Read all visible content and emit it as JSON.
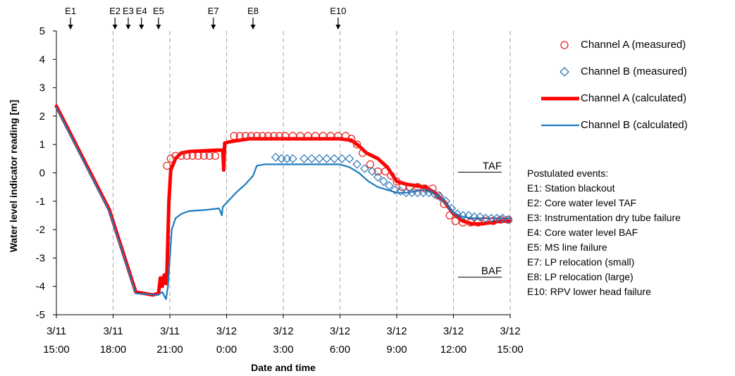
{
  "chart_data": {
    "type": "line",
    "xlabel": "Date and time",
    "ylabel": "Water level indicator reading [m]",
    "x_unit": "hour from 3/11 15:00",
    "xlim": [
      0,
      24
    ],
    "ylim": [
      -5,
      5
    ],
    "y_ticks": [
      5,
      4,
      3,
      2,
      1,
      0,
      -1,
      -2,
      -3,
      -4,
      -5
    ],
    "y_tick_labels": [
      "5",
      "4",
      "3",
      "2",
      "1",
      "0",
      "-1",
      "-2",
      "-3",
      "-4",
      "-5"
    ],
    "x_ticks": [
      {
        "x": 0,
        "date": "3/11",
        "time": "15:00"
      },
      {
        "x": 3,
        "date": "3/11",
        "time": "18:00"
      },
      {
        "x": 6,
        "date": "3/11",
        "time": "21:00"
      },
      {
        "x": 9,
        "date": "3/12",
        "time": "0:00"
      },
      {
        "x": 12,
        "date": "3/12",
        "time": "3:00"
      },
      {
        "x": 15,
        "date": "3/12",
        "time": "6:00"
      },
      {
        "x": 18,
        "date": "3/12",
        "time": "9:00"
      },
      {
        "x": 21,
        "date": "3/12",
        "time": "12:00"
      },
      {
        "x": 24,
        "date": "3/12",
        "time": "15:00"
      }
    ],
    "event_markers": [
      {
        "label": "E1",
        "x": 0.75
      },
      {
        "label": "E2",
        "x": 3.1
      },
      {
        "label": "E3",
        "x": 3.8
      },
      {
        "label": "E4",
        "x": 4.5
      },
      {
        "label": "E5",
        "x": 5.4
      },
      {
        "label": "E7",
        "x": 8.3
      },
      {
        "label": "E8",
        "x": 10.4
      },
      {
        "label": "E10",
        "x": 14.9
      }
    ],
    "reference_lines": [
      {
        "label": "TAF",
        "y": 0
      },
      {
        "label": "BAF",
        "y": -3.7
      }
    ],
    "grid": "vertical dashed at x ticks",
    "legend_position": "right",
    "series": [
      {
        "name": "Channel A (measured)",
        "style": "marker-circle",
        "color": "#e8201c",
        "points": [
          [
            5.85,
            0.25
          ],
          [
            6.05,
            0.5
          ],
          [
            6.3,
            0.6
          ],
          [
            6.6,
            0.6
          ],
          [
            6.9,
            0.6
          ],
          [
            7.2,
            0.6
          ],
          [
            7.5,
            0.6
          ],
          [
            7.8,
            0.6
          ],
          [
            8.1,
            0.6
          ],
          [
            8.4,
            0.6
          ],
          [
            9.4,
            1.3
          ],
          [
            9.7,
            1.3
          ],
          [
            10.0,
            1.3
          ],
          [
            10.3,
            1.3
          ],
          [
            10.6,
            1.3
          ],
          [
            10.9,
            1.3
          ],
          [
            11.2,
            1.3
          ],
          [
            11.5,
            1.3
          ],
          [
            11.8,
            1.3
          ],
          [
            12.1,
            1.3
          ],
          [
            12.5,
            1.3
          ],
          [
            12.9,
            1.3
          ],
          [
            13.3,
            1.3
          ],
          [
            13.7,
            1.3
          ],
          [
            14.1,
            1.3
          ],
          [
            14.5,
            1.3
          ],
          [
            14.9,
            1.3
          ],
          [
            15.3,
            1.3
          ],
          [
            15.6,
            1.2
          ],
          [
            15.9,
            1.0
          ],
          [
            16.2,
            0.7
          ],
          [
            16.6,
            0.3
          ],
          [
            17.0,
            0.05
          ],
          [
            17.4,
            0.05
          ],
          [
            17.7,
            -0.1
          ],
          [
            18.0,
            -0.3
          ],
          [
            18.3,
            -0.5
          ],
          [
            18.7,
            -0.5
          ],
          [
            19.1,
            -0.5
          ],
          [
            19.5,
            -0.55
          ],
          [
            19.9,
            -0.55
          ],
          [
            20.2,
            -0.8
          ],
          [
            20.5,
            -1.1
          ],
          [
            20.8,
            -1.5
          ],
          [
            21.1,
            -1.7
          ],
          [
            21.5,
            -1.75
          ],
          [
            21.9,
            -1.75
          ],
          [
            22.3,
            -1.75
          ],
          [
            22.7,
            -1.7
          ],
          [
            23.1,
            -1.7
          ],
          [
            23.5,
            -1.65
          ],
          [
            23.9,
            -1.65
          ]
        ]
      },
      {
        "name": "Channel B (measured)",
        "style": "marker-diamond",
        "color": "#2e75b6",
        "points": [
          [
            11.6,
            0.55
          ],
          [
            11.9,
            0.5
          ],
          [
            12.2,
            0.5
          ],
          [
            12.5,
            0.5
          ],
          [
            13.1,
            0.5
          ],
          [
            13.5,
            0.5
          ],
          [
            13.9,
            0.5
          ],
          [
            14.3,
            0.5
          ],
          [
            14.7,
            0.5
          ],
          [
            15.1,
            0.5
          ],
          [
            15.5,
            0.5
          ],
          [
            15.9,
            0.3
          ],
          [
            16.3,
            0.15
          ],
          [
            16.7,
            0.05
          ],
          [
            17.0,
            -0.15
          ],
          [
            17.3,
            -0.3
          ],
          [
            17.6,
            -0.45
          ],
          [
            17.9,
            -0.6
          ],
          [
            18.2,
            -0.65
          ],
          [
            18.5,
            -0.7
          ],
          [
            18.8,
            -0.7
          ],
          [
            19.1,
            -0.7
          ],
          [
            19.4,
            -0.7
          ],
          [
            19.7,
            -0.7
          ],
          [
            20.0,
            -0.75
          ],
          [
            20.3,
            -0.85
          ],
          [
            20.6,
            -1.0
          ],
          [
            20.9,
            -1.25
          ],
          [
            21.2,
            -1.45
          ],
          [
            21.5,
            -1.5
          ],
          [
            21.8,
            -1.5
          ],
          [
            22.1,
            -1.55
          ],
          [
            22.4,
            -1.55
          ],
          [
            22.7,
            -1.6
          ],
          [
            23.0,
            -1.6
          ],
          [
            23.3,
            -1.6
          ],
          [
            23.6,
            -1.6
          ],
          [
            23.9,
            -1.65
          ]
        ]
      },
      {
        "name": "Channel A (calculated)",
        "style": "line-thick",
        "color": "#ff0000",
        "points": [
          [
            0,
            2.35
          ],
          [
            2.8,
            -1.3
          ],
          [
            4.2,
            -4.2
          ],
          [
            5.1,
            -4.3
          ],
          [
            5.4,
            -4.25
          ],
          [
            5.5,
            -3.7
          ],
          [
            5.6,
            -4.0
          ],
          [
            5.7,
            -3.6
          ],
          [
            5.8,
            -3.9
          ],
          [
            5.85,
            -3.4
          ],
          [
            5.95,
            -1.0
          ],
          [
            6.05,
            0.1
          ],
          [
            6.3,
            0.5
          ],
          [
            6.6,
            0.7
          ],
          [
            7.0,
            0.75
          ],
          [
            8.5,
            0.8
          ],
          [
            8.8,
            0.8
          ],
          [
            8.85,
            0.1
          ],
          [
            8.9,
            1.05
          ],
          [
            9.2,
            1.1
          ],
          [
            10.2,
            1.2
          ],
          [
            11.0,
            1.2
          ],
          [
            12.0,
            1.2
          ],
          [
            13.0,
            1.2
          ],
          [
            14.0,
            1.2
          ],
          [
            15.0,
            1.2
          ],
          [
            15.6,
            1.15
          ],
          [
            16.0,
            0.95
          ],
          [
            16.4,
            0.7
          ],
          [
            17.0,
            0.5
          ],
          [
            17.5,
            0.2
          ],
          [
            18.0,
            -0.3
          ],
          [
            18.5,
            -0.4
          ],
          [
            19.5,
            -0.5
          ],
          [
            20.0,
            -0.7
          ],
          [
            20.5,
            -1.0
          ],
          [
            21.0,
            -1.45
          ],
          [
            21.5,
            -1.7
          ],
          [
            22.0,
            -1.8
          ],
          [
            22.5,
            -1.8
          ],
          [
            23.0,
            -1.75
          ],
          [
            23.5,
            -1.7
          ],
          [
            24.0,
            -1.7
          ]
        ]
      },
      {
        "name": "Channel B (calculated)",
        "style": "line-thin",
        "color": "#1c7bbf",
        "points": [
          [
            0,
            2.3
          ],
          [
            2.8,
            -1.35
          ],
          [
            4.2,
            -4.25
          ],
          [
            5.4,
            -4.3
          ],
          [
            5.6,
            -4.2
          ],
          [
            5.8,
            -4.45
          ],
          [
            5.9,
            -4.0
          ],
          [
            6.0,
            -3.0
          ],
          [
            6.1,
            -2.0
          ],
          [
            6.3,
            -1.6
          ],
          [
            6.6,
            -1.45
          ],
          [
            7.0,
            -1.35
          ],
          [
            8.0,
            -1.3
          ],
          [
            8.6,
            -1.25
          ],
          [
            8.75,
            -1.5
          ],
          [
            8.8,
            -1.2
          ],
          [
            9.5,
            -0.7
          ],
          [
            10.0,
            -0.4
          ],
          [
            10.4,
            -0.1
          ],
          [
            10.6,
            0.25
          ],
          [
            11.0,
            0.3
          ],
          [
            12.0,
            0.3
          ],
          [
            13.0,
            0.3
          ],
          [
            14.0,
            0.3
          ],
          [
            15.0,
            0.3
          ],
          [
            15.5,
            0.2
          ],
          [
            16.0,
            0.0
          ],
          [
            16.5,
            -0.3
          ],
          [
            17.0,
            -0.5
          ],
          [
            17.5,
            -0.6
          ],
          [
            18.0,
            -0.7
          ],
          [
            18.5,
            -0.7
          ],
          [
            19.0,
            -0.65
          ],
          [
            19.5,
            -0.6
          ],
          [
            20.0,
            -0.75
          ],
          [
            20.5,
            -0.95
          ],
          [
            21.0,
            -1.4
          ],
          [
            21.5,
            -1.55
          ],
          [
            22.0,
            -1.6
          ],
          [
            22.5,
            -1.6
          ],
          [
            23.0,
            -1.6
          ],
          [
            23.5,
            -1.6
          ],
          [
            24.0,
            -1.6
          ]
        ]
      }
    ]
  },
  "events_legend": {
    "title": "Postulated events:",
    "items": [
      "E1: Station blackout",
      "E2: Core water level TAF",
      "E3: Instrumentation dry tube failure",
      "E4: Core water level BAF",
      "E5: MS line failure",
      "E7: LP relocation (small)",
      "E8: LP relocation (large)",
      "E10: RPV lower head failure"
    ]
  }
}
